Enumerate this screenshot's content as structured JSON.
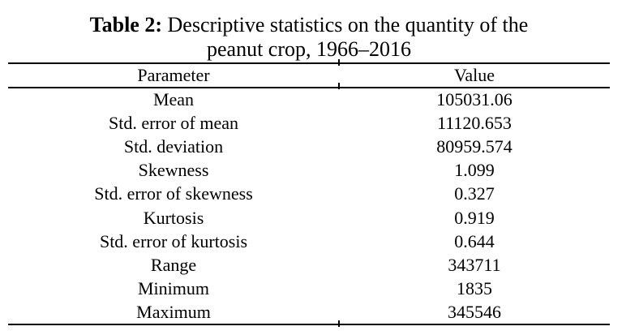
{
  "title": {
    "label": "Table 2:",
    "line1": "Descriptive statistics on the quantity of the",
    "line2": "peanut crop, 1966–2016"
  },
  "table": {
    "headers": {
      "parameter": "Parameter",
      "value": "Value"
    },
    "rows": [
      {
        "parameter": "Mean",
        "value": "105031.06"
      },
      {
        "parameter": "Std. error of mean",
        "value": "11120.653"
      },
      {
        "parameter": "Std. deviation",
        "value": "80959.574"
      },
      {
        "parameter": "Skewness",
        "value": "1.099"
      },
      {
        "parameter": "Std. error of skewness",
        "value": "0.327"
      },
      {
        "parameter": "Kurtosis",
        "value": "0.919"
      },
      {
        "parameter": "Std. error of kurtosis",
        "value": "0.644"
      },
      {
        "parameter": "Range",
        "value": "343711"
      },
      {
        "parameter": "Minimum",
        "value": "1835"
      },
      {
        "parameter": "Maximum",
        "value": "345546"
      }
    ]
  },
  "colors": {
    "text": "#000000",
    "background": "#ffffff",
    "rule": "#000000"
  },
  "chart_data": {
    "type": "table",
    "title": "Table 2: Descriptive statistics on the quantity of the peanut crop, 1966–2016",
    "columns": [
      "Parameter",
      "Value"
    ],
    "rows": [
      [
        "Mean",
        105031.06
      ],
      [
        "Std. error of mean",
        11120.653
      ],
      [
        "Std. deviation",
        80959.574
      ],
      [
        "Skewness",
        1.099
      ],
      [
        "Std. error of skewness",
        0.327
      ],
      [
        "Kurtosis",
        0.919
      ],
      [
        "Std. error of kurtosis",
        0.644
      ],
      [
        "Range",
        343711
      ],
      [
        "Minimum",
        1835
      ],
      [
        "Maximum",
        345546
      ]
    ]
  }
}
